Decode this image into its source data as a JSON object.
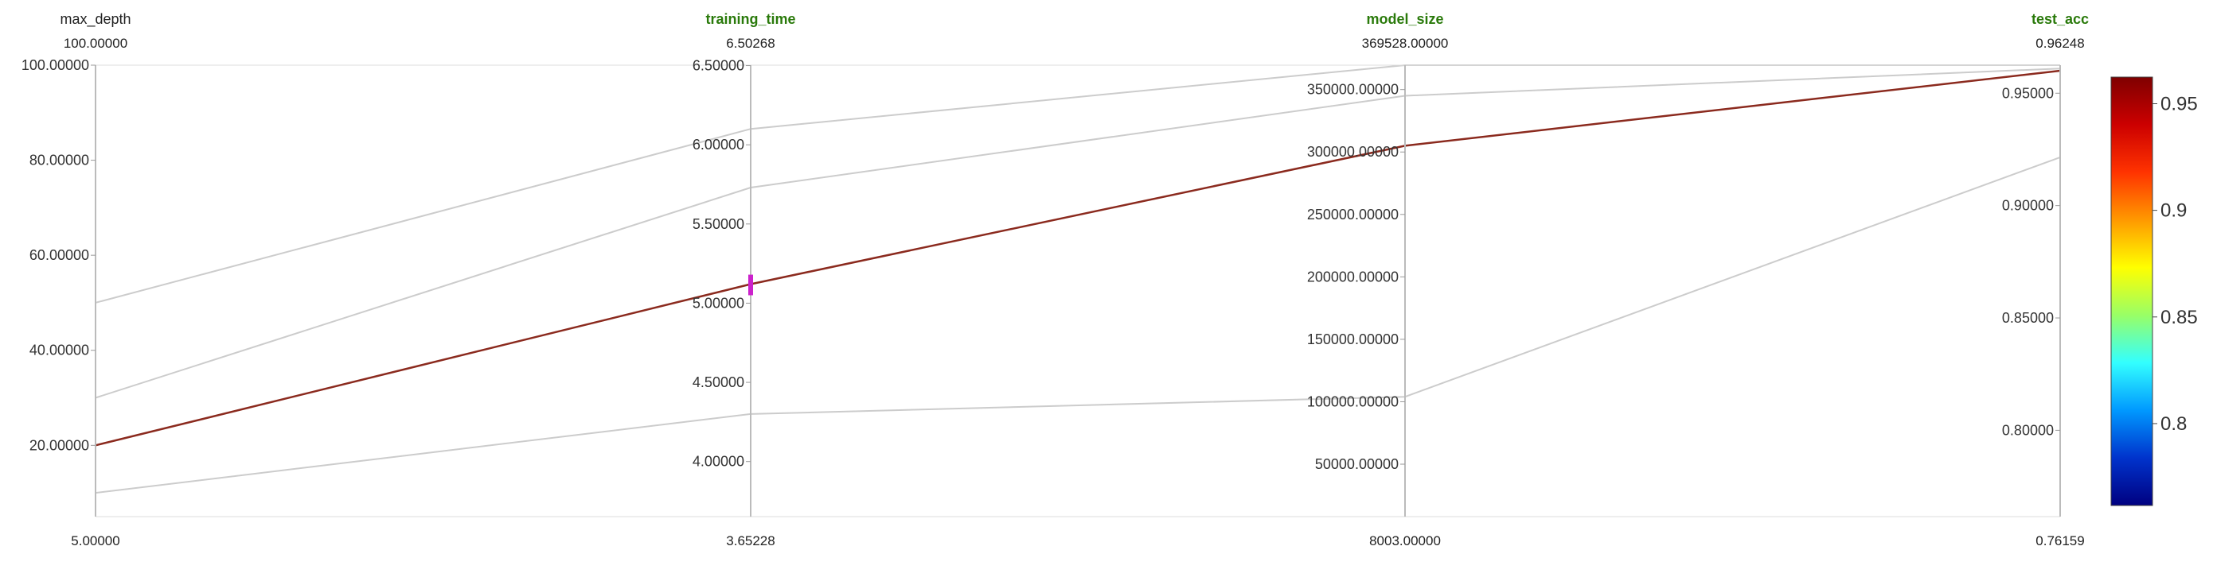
{
  "chart_data": {
    "type": "parallel_coordinates",
    "axes": [
      {
        "name": "max_depth",
        "highlighted": false,
        "min_label": "5.00000",
        "max_label": "100.00000",
        "min": 5,
        "max": 100,
        "ticks": [
          {
            "value": 20,
            "label": "20.00000"
          },
          {
            "value": 40,
            "label": "40.00000"
          },
          {
            "value": 60,
            "label": "60.00000"
          },
          {
            "value": 80,
            "label": "80.00000"
          },
          {
            "value": 100,
            "label": "100.00000"
          }
        ],
        "tick_side": "left"
      },
      {
        "name": "training_time",
        "highlighted": true,
        "min_label": "3.65228",
        "max_label": "6.50268",
        "min": 3.65228,
        "max": 6.50268,
        "ticks": [
          {
            "value": 4.0,
            "label": "4.00000"
          },
          {
            "value": 4.5,
            "label": "4.50000"
          },
          {
            "value": 5.0,
            "label": "5.00000"
          },
          {
            "value": 5.5,
            "label": "5.50000"
          },
          {
            "value": 6.0,
            "label": "6.00000"
          },
          {
            "value": 6.5,
            "label": "6.50000"
          }
        ],
        "tick_side": "left"
      },
      {
        "name": "model_size",
        "highlighted": true,
        "min_label": "8003.00000",
        "max_label": "369528.00000",
        "min": 8003,
        "max": 369528,
        "ticks": [
          {
            "value": 50000,
            "label": "50000.00000"
          },
          {
            "value": 100000,
            "label": "100000.00000"
          },
          {
            "value": 150000,
            "label": "150000.00000"
          },
          {
            "value": 200000,
            "label": "200000.00000"
          },
          {
            "value": 250000,
            "label": "250000.00000"
          },
          {
            "value": 300000,
            "label": "300000.00000"
          },
          {
            "value": 350000,
            "label": "350000.00000"
          }
        ],
        "tick_side": "left"
      },
      {
        "name": "test_acc",
        "highlighted": true,
        "min_label": "0.76159",
        "max_label": "0.96248",
        "min": 0.76159,
        "max": 0.96248,
        "ticks": [
          {
            "value": 0.8,
            "label": "0.80000"
          },
          {
            "value": 0.85,
            "label": "0.85000"
          },
          {
            "value": 0.9,
            "label": "0.90000"
          },
          {
            "value": 0.95,
            "label": "0.95000"
          }
        ],
        "tick_side": "left"
      }
    ],
    "lines": [
      {
        "values": [
          50,
          6.1,
          369528,
          0.96248
        ],
        "color": "#cccccc",
        "highlighted": false
      },
      {
        "values": [
          30,
          5.73,
          345000,
          0.961
        ],
        "color": "#cccccc",
        "highlighted": false
      },
      {
        "values": [
          10,
          4.3,
          104000,
          0.9215
        ],
        "color": "#cccccc",
        "highlighted": false
      },
      {
        "values": [
          20,
          5.12,
          305000,
          0.96
        ],
        "color": "#8b2a1e",
        "highlighted": true
      }
    ],
    "brush": {
      "axis": "training_time",
      "from": 5.05,
      "to": 5.18,
      "color": "#cc22cc"
    },
    "colorbar": {
      "min": 0.76159,
      "max": 0.96248,
      "ticks": [
        {
          "value": 0.8,
          "label": "0.8"
        },
        {
          "value": 0.85,
          "label": "0.85"
        },
        {
          "value": 0.9,
          "label": "0.9"
        },
        {
          "value": 0.95,
          "label": "0.95"
        }
      ],
      "colors": [
        "#000080",
        "#0033cc",
        "#0099ff",
        "#33ffff",
        "#99ff66",
        "#ffff00",
        "#ff9900",
        "#ff3300",
        "#cc0000",
        "#7f0000"
      ]
    },
    "grid": false
  }
}
